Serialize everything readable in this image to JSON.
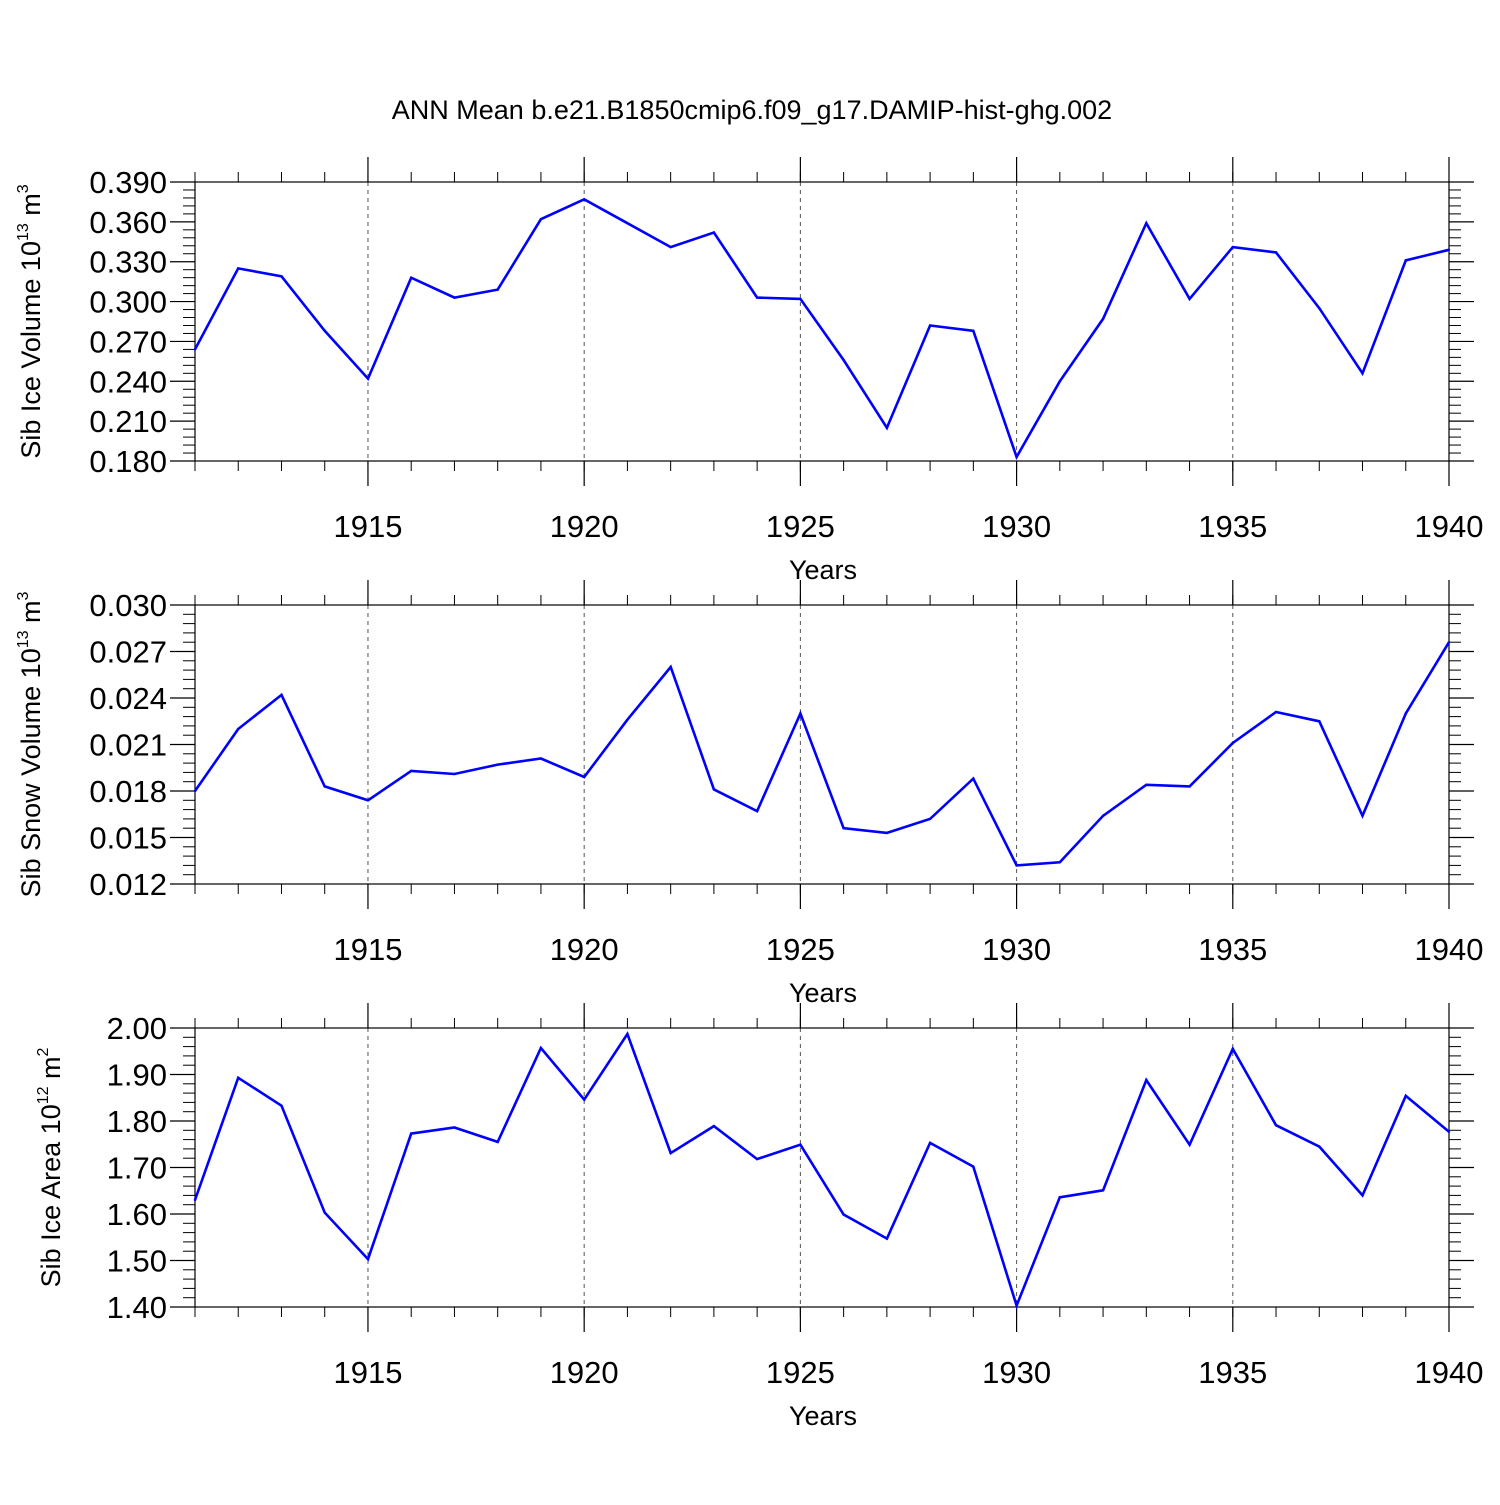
{
  "title": "ANN Mean b.e21.B1850cmip6.f09_g17.DAMIP-hist-ghg.002",
  "colors": {
    "series": "#0000ff",
    "axis": "#000000",
    "grid": "#555555"
  },
  "chart_data": [
    {
      "type": "line",
      "ylabel": {
        "main": "Sib Ice Volume 10",
        "exp": "13",
        "unit": " m",
        "unit_exp": "3"
      },
      "xlabel": "Years",
      "xlim": [
        1911,
        1940
      ],
      "ylim": [
        0.18,
        0.39
      ],
      "yticks": [
        "0.390",
        "0.360",
        "0.330",
        "0.300",
        "0.270",
        "0.240",
        "0.210",
        "0.180"
      ],
      "xticks": [
        "1915",
        "1920",
        "1925",
        "1930",
        "1935",
        "1940"
      ],
      "series": [
        {
          "name": "Sib Ice Volume",
          "x": [
            1911,
            1912,
            1913,
            1914,
            1915,
            1916,
            1917,
            1918,
            1919,
            1920,
            1921,
            1922,
            1923,
            1924,
            1925,
            1926,
            1927,
            1928,
            1929,
            1930,
            1931,
            1932,
            1933,
            1934,
            1935,
            1936,
            1937,
            1938,
            1939,
            1940
          ],
          "values": [
            0.264,
            0.325,
            0.319,
            0.278,
            0.242,
            0.318,
            0.303,
            0.309,
            0.362,
            0.377,
            0.359,
            0.341,
            0.352,
            0.303,
            0.302,
            0.256,
            0.205,
            0.282,
            0.278,
            0.183,
            0.24,
            0.287,
            0.359,
            0.302,
            0.341,
            0.337,
            0.295,
            0.246,
            0.331,
            0.339
          ]
        }
      ]
    },
    {
      "type": "line",
      "ylabel": {
        "main": "Sib Snow Volume 10",
        "exp": "13",
        "unit": " m",
        "unit_exp": "3"
      },
      "xlabel": "Years",
      "xlim": [
        1911,
        1940
      ],
      "ylim": [
        0.012,
        0.03
      ],
      "yticks": [
        "0.030",
        "0.027",
        "0.024",
        "0.021",
        "0.018",
        "0.015",
        "0.012"
      ],
      "xticks": [
        "1915",
        "1920",
        "1925",
        "1930",
        "1935",
        "1940"
      ],
      "series": [
        {
          "name": "Sib Snow Volume",
          "x": [
            1911,
            1912,
            1913,
            1914,
            1915,
            1916,
            1917,
            1918,
            1919,
            1920,
            1921,
            1922,
            1923,
            1924,
            1925,
            1926,
            1927,
            1928,
            1929,
            1930,
            1931,
            1932,
            1933,
            1934,
            1935,
            1936,
            1937,
            1938,
            1939,
            1940
          ],
          "values": [
            0.018,
            0.022,
            0.0242,
            0.0183,
            0.0174,
            0.0193,
            0.0191,
            0.0197,
            0.0201,
            0.0189,
            0.0226,
            0.026,
            0.0181,
            0.0167,
            0.023,
            0.0156,
            0.0153,
            0.0162,
            0.0188,
            0.0132,
            0.0134,
            0.0164,
            0.0184,
            0.0183,
            0.0211,
            0.0231,
            0.0225,
            0.0164,
            0.023,
            0.0276
          ]
        }
      ]
    },
    {
      "type": "line",
      "ylabel": {
        "main": "Sib Ice Area 10",
        "exp": "12",
        "unit": " m",
        "unit_exp": "2"
      },
      "xlabel": "Years",
      "xlim": [
        1911,
        1940
      ],
      "ylim": [
        1.4,
        2.0
      ],
      "yticks": [
        "2.00",
        "1.90",
        "1.80",
        "1.70",
        "1.60",
        "1.50",
        "1.40"
      ],
      "xticks": [
        "1915",
        "1920",
        "1925",
        "1930",
        "1935",
        "1940"
      ],
      "series": [
        {
          "name": "Sib Ice Area",
          "x": [
            1911,
            1912,
            1913,
            1914,
            1915,
            1916,
            1917,
            1918,
            1919,
            1920,
            1921,
            1922,
            1923,
            1924,
            1925,
            1926,
            1927,
            1928,
            1929,
            1930,
            1931,
            1932,
            1933,
            1934,
            1935,
            1936,
            1937,
            1938,
            1939,
            1940
          ],
          "values": [
            1.63,
            1.893,
            1.833,
            1.603,
            1.503,
            1.773,
            1.786,
            1.755,
            1.957,
            1.846,
            1.987,
            1.731,
            1.789,
            1.718,
            1.749,
            1.599,
            1.547,
            1.753,
            1.702,
            1.403,
            1.636,
            1.651,
            1.888,
            1.749,
            1.955,
            1.791,
            1.745,
            1.64,
            1.854,
            1.777
          ]
        }
      ]
    }
  ]
}
